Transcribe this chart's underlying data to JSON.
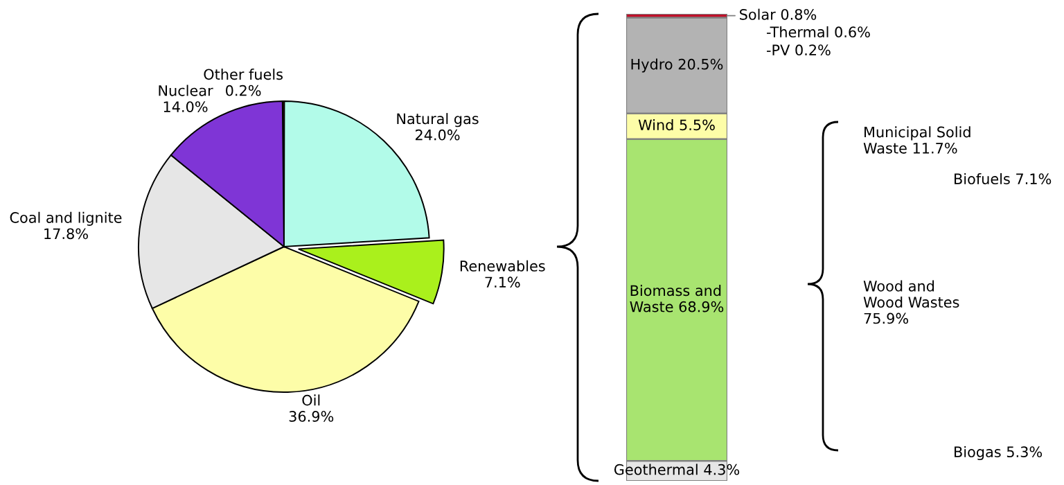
{
  "chart_data": [
    {
      "type": "pie",
      "categories": [
        "Other fuels",
        "Natural gas",
        "Renewables",
        "Oil",
        "Coal and lignite",
        "Nuclear"
      ],
      "values": [
        0.2,
        24.0,
        7.1,
        36.9,
        17.8,
        14.0
      ],
      "value_labels": [
        "0.2%",
        "24.0%",
        "7.1%",
        "36.9%",
        "17.8%",
        "14.0%"
      ],
      "colors": [
        "#9b1c1c",
        "#b2fbe9",
        "#aaf01c",
        "#fdfda8",
        "#e6e6e6",
        "#7f35d6"
      ]
    },
    {
      "type": "bar",
      "stacked": true,
      "categories": [
        null
      ],
      "series": [
        {
          "color": "#e6e6e6",
          "values": [
            4.3
          ],
          "value_labels": [
            "Geothermal 4.3%"
          ]
        },
        {
          "color": "#a8e470",
          "values": [
            68.9
          ],
          "value_labels": [
            "Biomass and\nWaste 68.9%"
          ]
        },
        {
          "color": "#fdfda8",
          "values": [
            5.5
          ],
          "value_labels": [
            "Wind 5.5%"
          ]
        },
        {
          "color": "#b3b3b3",
          "values": [
            20.5
          ],
          "value_labels": [
            "Hydro 20.5%"
          ]
        },
        {
          "color": "#c0102a",
          "values": [
            0.8
          ],
          "value_labels": [
            "Solar 0.8%"
          ]
        }
      ],
      "annotations": [
        "-Thermal 0.6%",
        "-PV 0.2%",
        "Municipal Solid\nWaste 11.7%",
        "Biofuels 7.1%",
        "Wood and\nWood Wastes\n75.9%",
        "Biogas 5.3%"
      ]
    }
  ]
}
